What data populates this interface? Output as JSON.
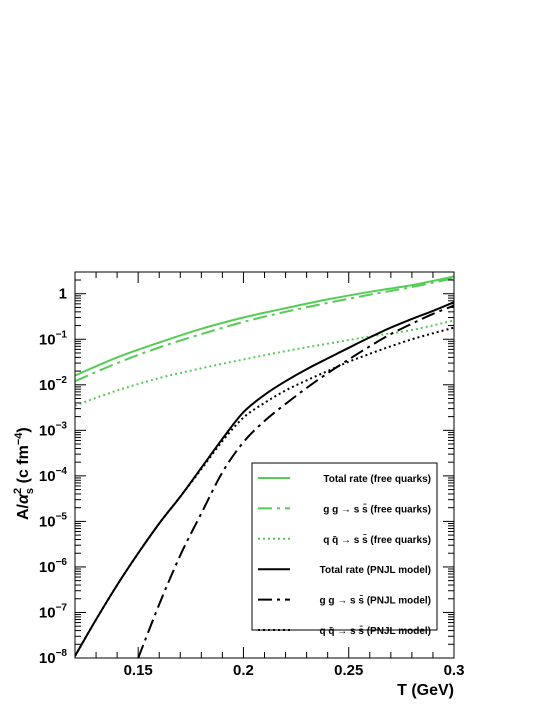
{
  "chart_data": {
    "type": "line",
    "xlabel": "T (GeV)",
    "ylabel_prefix": "A/",
    "ylabel_alpha": "α",
    "ylabel_sub": "s",
    "ylabel_sup": "2",
    "ylabel_unit": " (c fm",
    "ylabel_unit_sup": "−4",
    "ylabel_close": ")",
    "xlim": [
      0.12,
      0.3
    ],
    "ylim": [
      1e-08,
      3
    ],
    "yscale": "log",
    "grid": false,
    "legend_position": "bottom-right",
    "x_ticks": [
      {
        "value": 0.15,
        "label": "0.15"
      },
      {
        "value": 0.2,
        "label": "0.2"
      },
      {
        "value": 0.25,
        "label": "0.25"
      },
      {
        "value": 0.3,
        "label": "0.3"
      }
    ],
    "y_ticks": [
      {
        "value": 1e-08,
        "base": "10",
        "exp": "−8"
      },
      {
        "value": 1e-07,
        "base": "10",
        "exp": "−7"
      },
      {
        "value": 1e-06,
        "base": "10",
        "exp": "−6"
      },
      {
        "value": 1e-05,
        "base": "10",
        "exp": "−5"
      },
      {
        "value": 0.0001,
        "base": "10",
        "exp": "−4"
      },
      {
        "value": 0.001,
        "base": "10",
        "exp": "−3"
      },
      {
        "value": 0.01,
        "base": "10",
        "exp": "−2"
      },
      {
        "value": 0.1,
        "base": "10",
        "exp": "−1"
      },
      {
        "value": 1,
        "base": "1",
        "exp": ""
      }
    ],
    "series": [
      {
        "name": "Total rate (free quarks)",
        "color": "#55cc55",
        "style": "solid",
        "width": 2,
        "x": [
          0.12,
          0.14,
          0.16,
          0.18,
          0.2,
          0.22,
          0.24,
          0.26,
          0.28,
          0.3
        ],
        "y": [
          0.016,
          0.04,
          0.085,
          0.17,
          0.3,
          0.48,
          0.75,
          1.1,
          1.55,
          2.4
        ]
      },
      {
        "name": "g g → s s̄ (free quarks)",
        "color": "#55cc55",
        "style": "longdashdot",
        "width": 2,
        "x": [
          0.12,
          0.14,
          0.16,
          0.18,
          0.2,
          0.22,
          0.24,
          0.26,
          0.28,
          0.3
        ],
        "y": [
          0.012,
          0.03,
          0.066,
          0.13,
          0.24,
          0.4,
          0.63,
          0.95,
          1.4,
          2.2
        ]
      },
      {
        "name": "q q̄ → s s̄ (free quarks)",
        "color": "#55cc55",
        "style": "dotted",
        "width": 2,
        "x": [
          0.12,
          0.14,
          0.16,
          0.18,
          0.2,
          0.22,
          0.24,
          0.26,
          0.28,
          0.3
        ],
        "y": [
          0.0035,
          0.0075,
          0.014,
          0.023,
          0.036,
          0.055,
          0.08,
          0.115,
          0.16,
          0.26
        ]
      },
      {
        "name": "Total rate (PNJL model)",
        "color": "#000000",
        "style": "solid",
        "width": 2,
        "x": [
          0.12,
          0.13,
          0.14,
          0.15,
          0.16,
          0.17,
          0.18,
          0.19,
          0.2,
          0.21,
          0.22,
          0.23,
          0.24,
          0.25,
          0.26,
          0.27,
          0.28,
          0.29,
          0.3
        ],
        "y": [
          1.1e-08,
          7e-08,
          4e-07,
          2e-06,
          9e-06,
          3.5e-05,
          0.00015,
          0.00065,
          0.0025,
          0.006,
          0.012,
          0.022,
          0.038,
          0.065,
          0.11,
          0.18,
          0.28,
          0.42,
          0.65
        ]
      },
      {
        "name": "g g → s s̄ (PNJL model)",
        "color": "#000000",
        "style": "longdashdot",
        "width": 2,
        "x": [
          0.15,
          0.16,
          0.17,
          0.18,
          0.19,
          0.2,
          0.21,
          0.22,
          0.23,
          0.24,
          0.25,
          0.26,
          0.27,
          0.28,
          0.29,
          0.3
        ],
        "y": [
          1e-08,
          1.5e-07,
          1.8e-06,
          1.5e-05,
          0.00012,
          0.00055,
          0.0016,
          0.0038,
          0.0085,
          0.018,
          0.036,
          0.07,
          0.13,
          0.22,
          0.36,
          0.55
        ]
      },
      {
        "name": "q q̄ → s s̄ (PNJL model)",
        "color": "#000000",
        "style": "dotted",
        "width": 2,
        "x": [
          0.12,
          0.13,
          0.14,
          0.15,
          0.16,
          0.17,
          0.18,
          0.19,
          0.2,
          0.21,
          0.22,
          0.23,
          0.24,
          0.25,
          0.26,
          0.27,
          0.28,
          0.29,
          0.3
        ],
        "y": [
          1.1e-08,
          7e-08,
          4e-07,
          2e-06,
          9e-06,
          3.5e-05,
          0.00014,
          0.00058,
          0.0019,
          0.004,
          0.0075,
          0.0125,
          0.02,
          0.032,
          0.048,
          0.07,
          0.1,
          0.135,
          0.18
        ]
      }
    ]
  }
}
